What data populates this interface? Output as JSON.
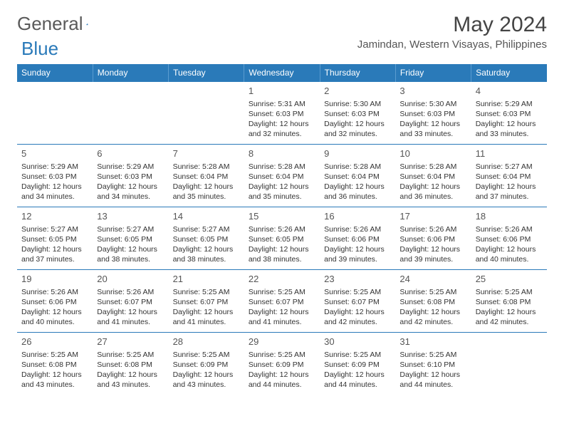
{
  "logo": {
    "text1": "General",
    "text2": "Blue"
  },
  "title": "May 2024",
  "location": "Jamindan, Western Visayas, Philippines",
  "colors": {
    "header_bg": "#2a7ab9",
    "header_text": "#ffffff",
    "border": "#2a7ab9",
    "text": "#333333"
  },
  "daynames": [
    "Sunday",
    "Monday",
    "Tuesday",
    "Wednesday",
    "Thursday",
    "Friday",
    "Saturday"
  ],
  "weeks": [
    [
      null,
      null,
      null,
      {
        "d": "1",
        "sr": "5:31 AM",
        "ss": "6:03 PM",
        "dl": "12 hours and 32 minutes."
      },
      {
        "d": "2",
        "sr": "5:30 AM",
        "ss": "6:03 PM",
        "dl": "12 hours and 32 minutes."
      },
      {
        "d": "3",
        "sr": "5:30 AM",
        "ss": "6:03 PM",
        "dl": "12 hours and 33 minutes."
      },
      {
        "d": "4",
        "sr": "5:29 AM",
        "ss": "6:03 PM",
        "dl": "12 hours and 33 minutes."
      }
    ],
    [
      {
        "d": "5",
        "sr": "5:29 AM",
        "ss": "6:03 PM",
        "dl": "12 hours and 34 minutes."
      },
      {
        "d": "6",
        "sr": "5:29 AM",
        "ss": "6:03 PM",
        "dl": "12 hours and 34 minutes."
      },
      {
        "d": "7",
        "sr": "5:28 AM",
        "ss": "6:04 PM",
        "dl": "12 hours and 35 minutes."
      },
      {
        "d": "8",
        "sr": "5:28 AM",
        "ss": "6:04 PM",
        "dl": "12 hours and 35 minutes."
      },
      {
        "d": "9",
        "sr": "5:28 AM",
        "ss": "6:04 PM",
        "dl": "12 hours and 36 minutes."
      },
      {
        "d": "10",
        "sr": "5:28 AM",
        "ss": "6:04 PM",
        "dl": "12 hours and 36 minutes."
      },
      {
        "d": "11",
        "sr": "5:27 AM",
        "ss": "6:04 PM",
        "dl": "12 hours and 37 minutes."
      }
    ],
    [
      {
        "d": "12",
        "sr": "5:27 AM",
        "ss": "6:05 PM",
        "dl": "12 hours and 37 minutes."
      },
      {
        "d": "13",
        "sr": "5:27 AM",
        "ss": "6:05 PM",
        "dl": "12 hours and 38 minutes."
      },
      {
        "d": "14",
        "sr": "5:27 AM",
        "ss": "6:05 PM",
        "dl": "12 hours and 38 minutes."
      },
      {
        "d": "15",
        "sr": "5:26 AM",
        "ss": "6:05 PM",
        "dl": "12 hours and 38 minutes."
      },
      {
        "d": "16",
        "sr": "5:26 AM",
        "ss": "6:06 PM",
        "dl": "12 hours and 39 minutes."
      },
      {
        "d": "17",
        "sr": "5:26 AM",
        "ss": "6:06 PM",
        "dl": "12 hours and 39 minutes."
      },
      {
        "d": "18",
        "sr": "5:26 AM",
        "ss": "6:06 PM",
        "dl": "12 hours and 40 minutes."
      }
    ],
    [
      {
        "d": "19",
        "sr": "5:26 AM",
        "ss": "6:06 PM",
        "dl": "12 hours and 40 minutes."
      },
      {
        "d": "20",
        "sr": "5:26 AM",
        "ss": "6:07 PM",
        "dl": "12 hours and 41 minutes."
      },
      {
        "d": "21",
        "sr": "5:25 AM",
        "ss": "6:07 PM",
        "dl": "12 hours and 41 minutes."
      },
      {
        "d": "22",
        "sr": "5:25 AM",
        "ss": "6:07 PM",
        "dl": "12 hours and 41 minutes."
      },
      {
        "d": "23",
        "sr": "5:25 AM",
        "ss": "6:07 PM",
        "dl": "12 hours and 42 minutes."
      },
      {
        "d": "24",
        "sr": "5:25 AM",
        "ss": "6:08 PM",
        "dl": "12 hours and 42 minutes."
      },
      {
        "d": "25",
        "sr": "5:25 AM",
        "ss": "6:08 PM",
        "dl": "12 hours and 42 minutes."
      }
    ],
    [
      {
        "d": "26",
        "sr": "5:25 AM",
        "ss": "6:08 PM",
        "dl": "12 hours and 43 minutes."
      },
      {
        "d": "27",
        "sr": "5:25 AM",
        "ss": "6:08 PM",
        "dl": "12 hours and 43 minutes."
      },
      {
        "d": "28",
        "sr": "5:25 AM",
        "ss": "6:09 PM",
        "dl": "12 hours and 43 minutes."
      },
      {
        "d": "29",
        "sr": "5:25 AM",
        "ss": "6:09 PM",
        "dl": "12 hours and 44 minutes."
      },
      {
        "d": "30",
        "sr": "5:25 AM",
        "ss": "6:09 PM",
        "dl": "12 hours and 44 minutes."
      },
      {
        "d": "31",
        "sr": "5:25 AM",
        "ss": "6:10 PM",
        "dl": "12 hours and 44 minutes."
      },
      null
    ]
  ],
  "labels": {
    "sunrise": "Sunrise: ",
    "sunset": "Sunset: ",
    "daylight": "Daylight: "
  }
}
